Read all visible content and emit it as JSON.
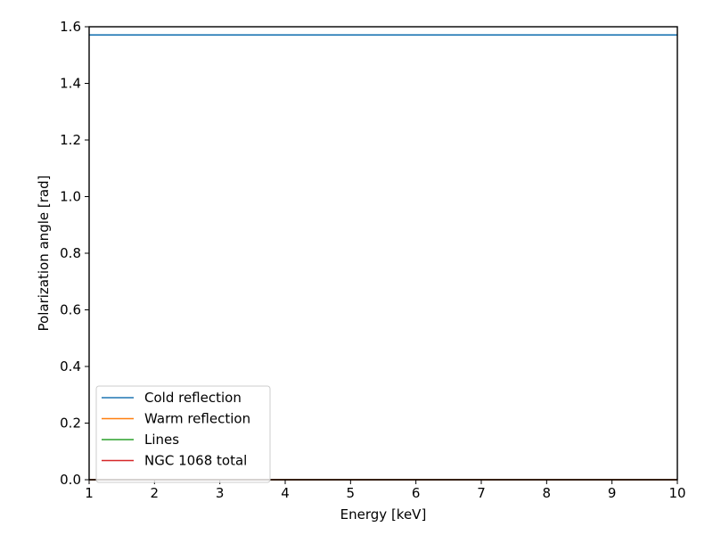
{
  "chart_data": {
    "type": "line",
    "title": "",
    "xlabel": "Energy [keV]",
    "ylabel": "Polarization angle [rad]",
    "xlim": [
      1,
      10
    ],
    "ylim": [
      0,
      1.6
    ],
    "x_ticks": [
      1,
      2,
      3,
      4,
      5,
      6,
      7,
      8,
      9,
      10
    ],
    "x_tick_labels": [
      "1",
      "2",
      "3",
      "4",
      "5",
      "6",
      "7",
      "8",
      "9",
      "10"
    ],
    "y_ticks": [
      0.0,
      0.2,
      0.4,
      0.6,
      0.8,
      1.0,
      1.2,
      1.4,
      1.6
    ],
    "y_tick_labels": [
      "0.0",
      "0.2",
      "0.4",
      "0.6",
      "0.8",
      "1.0",
      "1.2",
      "1.4",
      "1.6"
    ],
    "grid": false,
    "legend_position": "bottom-left",
    "series": [
      {
        "name": "Cold reflection",
        "color": "#1f77b4",
        "x": [
          1,
          10
        ],
        "y": [
          1.571,
          1.571
        ]
      },
      {
        "name": "Warm reflection",
        "color": "#ff7f0e",
        "x": [
          1,
          10
        ],
        "y": [
          0.0,
          0.0
        ]
      },
      {
        "name": "Lines",
        "color": "#2ca02c",
        "x": [
          1,
          10
        ],
        "y": [
          0.0,
          0.0
        ]
      },
      {
        "name": "NGC 1068 total",
        "color": "#d62728",
        "x": [
          1,
          10
        ],
        "y": [
          0.0,
          0.0
        ]
      }
    ]
  }
}
